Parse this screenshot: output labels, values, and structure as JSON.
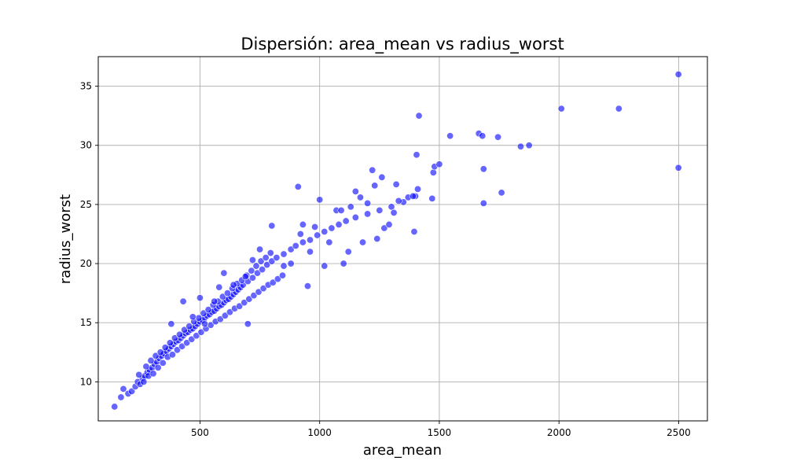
{
  "chart_data": {
    "type": "scatter",
    "title": "Dispersión: area_mean vs radius_worst",
    "xlabel": "area_mean",
    "ylabel": "radius_worst",
    "xlim": [
      75,
      2620
    ],
    "ylim": [
      6.7,
      37.5
    ],
    "xticks": [
      500,
      1000,
      1500,
      2000,
      2500
    ],
    "yticks": [
      10,
      15,
      20,
      25,
      30,
      35
    ],
    "grid": true,
    "marker_color": "#0000ff",
    "marker_alpha": 0.6,
    "points": [
      [
        143,
        7.9
      ],
      [
        170,
        8.7
      ],
      [
        180,
        9.4
      ],
      [
        200,
        9.0
      ],
      [
        215,
        9.2
      ],
      [
        230,
        9.6
      ],
      [
        240,
        10.0
      ],
      [
        250,
        9.8
      ],
      [
        260,
        10.3
      ],
      [
        270,
        10.5
      ],
      [
        280,
        10.8
      ],
      [
        290,
        11.0
      ],
      [
        300,
        11.2
      ],
      [
        310,
        11.5
      ],
      [
        320,
        11.7
      ],
      [
        330,
        12.0
      ],
      [
        340,
        12.2
      ],
      [
        350,
        12.4
      ],
      [
        360,
        12.6
      ],
      [
        370,
        12.8
      ],
      [
        380,
        13.0
      ],
      [
        390,
        13.2
      ],
      [
        400,
        13.4
      ],
      [
        410,
        13.5
      ],
      [
        420,
        13.7
      ],
      [
        430,
        13.9
      ],
      [
        440,
        14.1
      ],
      [
        450,
        14.2
      ],
      [
        460,
        14.4
      ],
      [
        470,
        14.5
      ],
      [
        480,
        14.7
      ],
      [
        490,
        14.9
      ],
      [
        500,
        15.1
      ],
      [
        510,
        15.2
      ],
      [
        520,
        15.4
      ],
      [
        530,
        15.6
      ],
      [
        540,
        15.7
      ],
      [
        550,
        15.9
      ],
      [
        560,
        16.0
      ],
      [
        570,
        16.2
      ],
      [
        580,
        16.4
      ],
      [
        590,
        16.5
      ],
      [
        600,
        16.7
      ],
      [
        610,
        16.9
      ],
      [
        620,
        17.0
      ],
      [
        630,
        17.2
      ],
      [
        640,
        17.4
      ],
      [
        650,
        17.6
      ],
      [
        660,
        17.8
      ],
      [
        670,
        18.0
      ],
      [
        680,
        18.2
      ],
      [
        700,
        18.5
      ],
      [
        720,
        18.8
      ],
      [
        740,
        19.2
      ],
      [
        760,
        19.5
      ],
      [
        780,
        19.9
      ],
      [
        800,
        20.2
      ],
      [
        820,
        20.5
      ],
      [
        850,
        20.8
      ],
      [
        880,
        21.2
      ],
      [
        900,
        21.5
      ],
      [
        930,
        21.8
      ],
      [
        960,
        22.0
      ],
      [
        990,
        22.4
      ],
      [
        1020,
        22.7
      ],
      [
        1050,
        23.0
      ],
      [
        1080,
        23.3
      ],
      [
        1110,
        23.6
      ],
      [
        1150,
        23.9
      ],
      [
        1200,
        24.2
      ],
      [
        1250,
        24.5
      ],
      [
        1300,
        24.8
      ],
      [
        1350,
        25.2
      ],
      [
        1400,
        25.7
      ],
      [
        265,
        10.0
      ],
      [
        285,
        10.5
      ],
      [
        305,
        10.7
      ],
      [
        325,
        11.2
      ],
      [
        345,
        11.6
      ],
      [
        365,
        12.1
      ],
      [
        385,
        12.3
      ],
      [
        405,
        12.7
      ],
      [
        425,
        13.0
      ],
      [
        445,
        13.3
      ],
      [
        465,
        13.6
      ],
      [
        485,
        13.9
      ],
      [
        505,
        14.2
      ],
      [
        525,
        14.5
      ],
      [
        545,
        14.8
      ],
      [
        565,
        15.1
      ],
      [
        585,
        15.3
      ],
      [
        605,
        15.6
      ],
      [
        625,
        15.9
      ],
      [
        645,
        16.2
      ],
      [
        665,
        16.4
      ],
      [
        685,
        16.7
      ],
      [
        705,
        17.0
      ],
      [
        725,
        17.3
      ],
      [
        745,
        17.6
      ],
      [
        765,
        17.9
      ],
      [
        785,
        18.2
      ],
      [
        805,
        18.4
      ],
      [
        825,
        18.7
      ],
      [
        845,
        19.0
      ],
      [
        245,
        10.6
      ],
      [
        275,
        11.3
      ],
      [
        295,
        11.8
      ],
      [
        315,
        12.2
      ],
      [
        335,
        12.5
      ],
      [
        355,
        12.9
      ],
      [
        375,
        13.3
      ],
      [
        395,
        13.7
      ],
      [
        415,
        14.0
      ],
      [
        435,
        14.4
      ],
      [
        455,
        14.7
      ],
      [
        475,
        15.1
      ],
      [
        495,
        15.4
      ],
      [
        515,
        15.8
      ],
      [
        535,
        16.1
      ],
      [
        555,
        16.5
      ],
      [
        575,
        16.8
      ],
      [
        595,
        17.2
      ],
      [
        615,
        17.5
      ],
      [
        635,
        17.9
      ],
      [
        655,
        18.3
      ],
      [
        675,
        18.6
      ],
      [
        695,
        19.0
      ],
      [
        715,
        19.4
      ],
      [
        735,
        19.8
      ],
      [
        755,
        20.2
      ],
      [
        775,
        20.5
      ],
      [
        795,
        20.9
      ],
      [
        380,
        14.9
      ],
      [
        430,
        16.8
      ],
      [
        470,
        15.5
      ],
      [
        500,
        17.1
      ],
      [
        520,
        14.9
      ],
      [
        560,
        16.8
      ],
      [
        580,
        18.0
      ],
      [
        600,
        19.2
      ],
      [
        640,
        18.2
      ],
      [
        690,
        18.9
      ],
      [
        700,
        14.9
      ],
      [
        720,
        20.3
      ],
      [
        750,
        21.2
      ],
      [
        800,
        23.2
      ],
      [
        850,
        19.8
      ],
      [
        880,
        20.0
      ],
      [
        910,
        26.5
      ],
      [
        920,
        22.5
      ],
      [
        930,
        23.3
      ],
      [
        950,
        18.1
      ],
      [
        960,
        21.0
      ],
      [
        980,
        23.1
      ],
      [
        1000,
        25.4
      ],
      [
        1020,
        19.8
      ],
      [
        1040,
        21.8
      ],
      [
        1070,
        24.5
      ],
      [
        1090,
        24.5
      ],
      [
        1100,
        20.0
      ],
      [
        1120,
        21.0
      ],
      [
        1130,
        24.8
      ],
      [
        1150,
        26.1
      ],
      [
        1170,
        25.6
      ],
      [
        1180,
        21.8
      ],
      [
        1200,
        25.1
      ],
      [
        1220,
        27.9
      ],
      [
        1230,
        26.6
      ],
      [
        1240,
        22.1
      ],
      [
        1260,
        27.3
      ],
      [
        1270,
        23.0
      ],
      [
        1290,
        23.3
      ],
      [
        1310,
        24.3
      ],
      [
        1320,
        26.7
      ],
      [
        1330,
        25.3
      ],
      [
        1370,
        25.6
      ],
      [
        1390,
        25.7
      ],
      [
        1395,
        22.7
      ],
      [
        1405,
        29.2
      ],
      [
        1410,
        26.3
      ],
      [
        1415,
        32.5
      ],
      [
        1470,
        25.5
      ],
      [
        1475,
        27.7
      ],
      [
        1480,
        28.2
      ],
      [
        1500,
        28.4
      ],
      [
        1545,
        30.8
      ],
      [
        1665,
        31.0
      ],
      [
        1680,
        30.8
      ],
      [
        1685,
        28.0
      ],
      [
        1685,
        25.1
      ],
      [
        1745,
        30.7
      ],
      [
        1760,
        26.0
      ],
      [
        1840,
        29.9
      ],
      [
        1875,
        30.0
      ],
      [
        2010,
        33.1
      ],
      [
        2250,
        33.1
      ],
      [
        2499,
        36.0
      ],
      [
        2499,
        28.1
      ]
    ]
  }
}
